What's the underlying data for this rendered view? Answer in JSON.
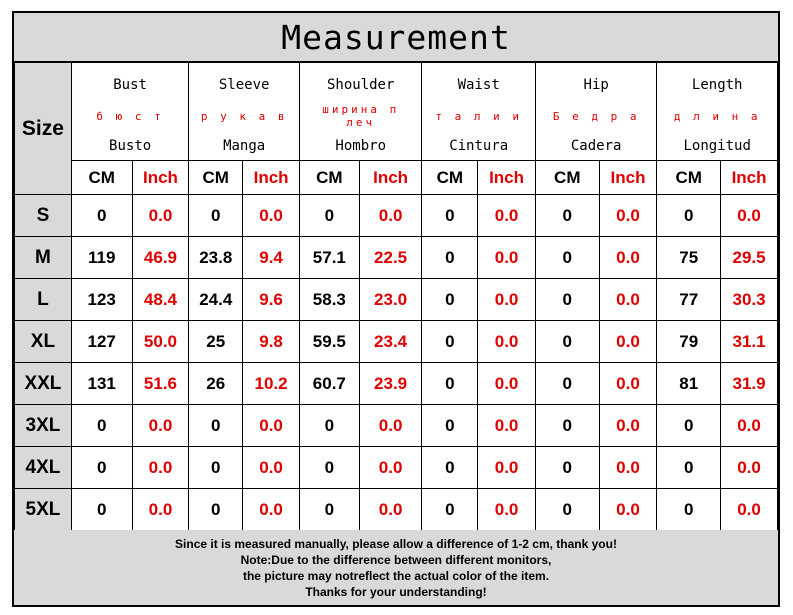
{
  "title": "Measurement",
  "size_label": "Size",
  "groups": [
    {
      "en": "Bust",
      "ru": "б ю с т",
      "es": "Busto"
    },
    {
      "en": "Sleeve",
      "ru": "р у к а в",
      "es": "Manga"
    },
    {
      "en": "Shoulder",
      "ru": "ширина п леч",
      "es": "Hombro"
    },
    {
      "en": "Waist",
      "ru": "т а л и и",
      "es": "Cintura"
    },
    {
      "en": "Hip",
      "ru": "Б е д р а",
      "es": "Cadera"
    },
    {
      "en": "Length",
      "ru": "д л и н а",
      "es": "Longitud"
    }
  ],
  "units": {
    "cm": "CM",
    "inch": "Inch"
  },
  "rows": [
    {
      "size": "S",
      "values": [
        [
          "0",
          "0.0"
        ],
        [
          "0",
          "0.0"
        ],
        [
          "0",
          "0.0"
        ],
        [
          "0",
          "0.0"
        ],
        [
          "0",
          "0.0"
        ],
        [
          "0",
          "0.0"
        ]
      ]
    },
    {
      "size": "M",
      "values": [
        [
          "119",
          "46.9"
        ],
        [
          "23.8",
          "9.4"
        ],
        [
          "57.1",
          "22.5"
        ],
        [
          "0",
          "0.0"
        ],
        [
          "0",
          "0.0"
        ],
        [
          "75",
          "29.5"
        ]
      ]
    },
    {
      "size": "L",
      "values": [
        [
          "123",
          "48.4"
        ],
        [
          "24.4",
          "9.6"
        ],
        [
          "58.3",
          "23.0"
        ],
        [
          "0",
          "0.0"
        ],
        [
          "0",
          "0.0"
        ],
        [
          "77",
          "30.3"
        ]
      ]
    },
    {
      "size": "XL",
      "values": [
        [
          "127",
          "50.0"
        ],
        [
          "25",
          "9.8"
        ],
        [
          "59.5",
          "23.4"
        ],
        [
          "0",
          "0.0"
        ],
        [
          "0",
          "0.0"
        ],
        [
          "79",
          "31.1"
        ]
      ]
    },
    {
      "size": "XXL",
      "values": [
        [
          "131",
          "51.6"
        ],
        [
          "26",
          "10.2"
        ],
        [
          "60.7",
          "23.9"
        ],
        [
          "0",
          "0.0"
        ],
        [
          "0",
          "0.0"
        ],
        [
          "81",
          "31.9"
        ]
      ]
    },
    {
      "size": "3XL",
      "values": [
        [
          "0",
          "0.0"
        ],
        [
          "0",
          "0.0"
        ],
        [
          "0",
          "0.0"
        ],
        [
          "0",
          "0.0"
        ],
        [
          "0",
          "0.0"
        ],
        [
          "0",
          "0.0"
        ]
      ]
    },
    {
      "size": "4XL",
      "values": [
        [
          "0",
          "0.0"
        ],
        [
          "0",
          "0.0"
        ],
        [
          "0",
          "0.0"
        ],
        [
          "0",
          "0.0"
        ],
        [
          "0",
          "0.0"
        ],
        [
          "0",
          "0.0"
        ]
      ]
    },
    {
      "size": "5XL",
      "values": [
        [
          "0",
          "0.0"
        ],
        [
          "0",
          "0.0"
        ],
        [
          "0",
          "0.0"
        ],
        [
          "0",
          "0.0"
        ],
        [
          "0",
          "0.0"
        ],
        [
          "0",
          "0.0"
        ]
      ]
    }
  ],
  "footer": [
    "Since it is measured manually, please allow a difference of 1-2 cm, thank you!",
    "Note:Due to the difference between different monitors,",
    "the picture may notreflect the actual color of the item.",
    "Thanks for your understanding!"
  ]
}
